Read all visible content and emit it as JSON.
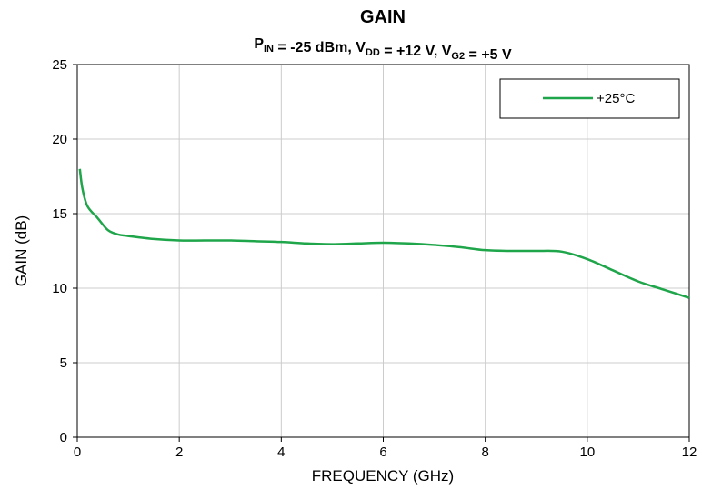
{
  "chart_data": {
    "type": "line",
    "title": "GAIN",
    "subtitle": {
      "segments": [
        {
          "text": "P",
          "sub": "IN"
        },
        {
          "text": " = -25 dBm, V",
          "sub": "DD"
        },
        {
          "text": " = +12 V, V",
          "sub": "G2"
        },
        {
          "text": " = +5 V",
          "sub": ""
        }
      ]
    },
    "xlabel": "FREQUENCY (GHz)",
    "ylabel": "GAIN (dB)",
    "xlim": [
      0,
      12
    ],
    "ylim": [
      0,
      25
    ],
    "xticks": [
      0,
      2,
      4,
      6,
      8,
      10,
      12
    ],
    "yticks": [
      0,
      5,
      10,
      15,
      20,
      25
    ],
    "grid": true,
    "legend_position": "top-right",
    "series": [
      {
        "name": "+25°C",
        "color": "#1fa54a",
        "x": [
          0.05,
          0.1,
          0.2,
          0.4,
          0.6,
          0.8,
          1.0,
          1.5,
          2.0,
          2.5,
          3.0,
          3.5,
          4.0,
          4.5,
          5.0,
          5.5,
          6.0,
          6.5,
          7.0,
          7.5,
          8.0,
          8.5,
          9.0,
          9.5,
          10.0,
          10.5,
          11.0,
          11.5,
          12.0
        ],
        "y": [
          18.0,
          16.7,
          15.5,
          14.7,
          13.9,
          13.6,
          13.5,
          13.3,
          13.2,
          13.2,
          13.2,
          13.15,
          13.1,
          13.0,
          12.95,
          13.0,
          13.05,
          13.0,
          12.9,
          12.75,
          12.55,
          12.5,
          12.5,
          12.45,
          11.95,
          11.2,
          10.45,
          9.9,
          9.35
        ]
      }
    ]
  }
}
